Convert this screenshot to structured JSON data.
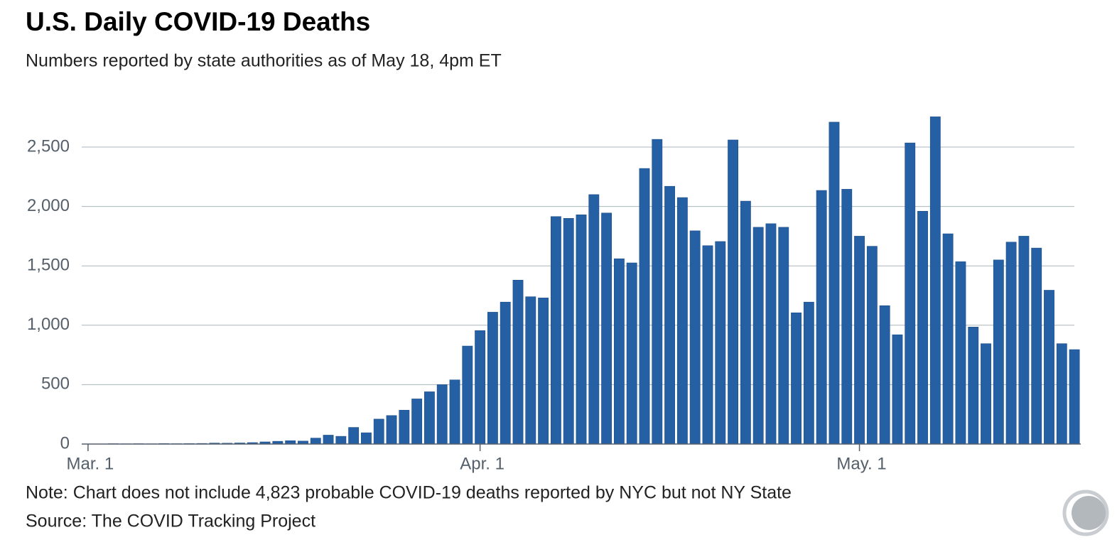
{
  "chart_data": {
    "type": "bar",
    "title": "U.S. Daily COVID-19 Deaths",
    "subtitle": "Numbers reported by state authorities as of May 18, 4pm ET",
    "note": "Note: Chart does not include 4,823 probable COVID-19 deaths reported by NYC but not NY State",
    "source": "Source: The COVID Tracking Project",
    "categories": [
      "Mar. 1",
      null,
      null,
      null,
      null,
      null,
      null,
      null,
      null,
      null,
      null,
      null,
      null,
      null,
      null,
      null,
      null,
      null,
      null,
      null,
      null,
      null,
      null,
      null,
      null,
      null,
      null,
      null,
      null,
      null,
      null,
      "Apr. 1",
      null,
      null,
      null,
      null,
      null,
      null,
      null,
      null,
      null,
      null,
      null,
      null,
      null,
      null,
      null,
      null,
      null,
      null,
      null,
      null,
      null,
      null,
      null,
      null,
      null,
      null,
      null,
      null,
      null,
      "May. 1",
      null,
      null,
      null,
      null,
      null,
      null,
      null,
      null,
      null,
      null,
      null,
      null,
      null,
      null,
      null,
      null,
      null
    ],
    "values": [
      1,
      1,
      3,
      2,
      3,
      2,
      4,
      3,
      4,
      5,
      8,
      7,
      9,
      12,
      18,
      23,
      28,
      25,
      50,
      75,
      65,
      140,
      95,
      210,
      240,
      285,
      380,
      440,
      500,
      540,
      825,
      955,
      1110,
      1195,
      1380,
      1240,
      1230,
      1915,
      1900,
      1930,
      2100,
      1945,
      1560,
      1525,
      2320,
      2565,
      2170,
      2075,
      1795,
      1670,
      1705,
      2560,
      2045,
      1825,
      1855,
      1825,
      1105,
      1195,
      2135,
      2710,
      2145,
      1750,
      1665,
      1165,
      920,
      2535,
      1960,
      2755,
      1770,
      1535,
      985,
      845,
      1550,
      1700,
      1750,
      1650,
      1295,
      845,
      795
    ],
    "color": "#2660a4",
    "ylim": [
      0,
      2850
    ],
    "yticks": [
      0,
      500,
      {
        "value": 1000,
        "label": "1,000"
      },
      {
        "value": 1500,
        "label": "1,500"
      },
      {
        "value": 2000,
        "label": "2,000"
      },
      {
        "value": 2500,
        "label": "2,500"
      }
    ],
    "grid": true
  }
}
